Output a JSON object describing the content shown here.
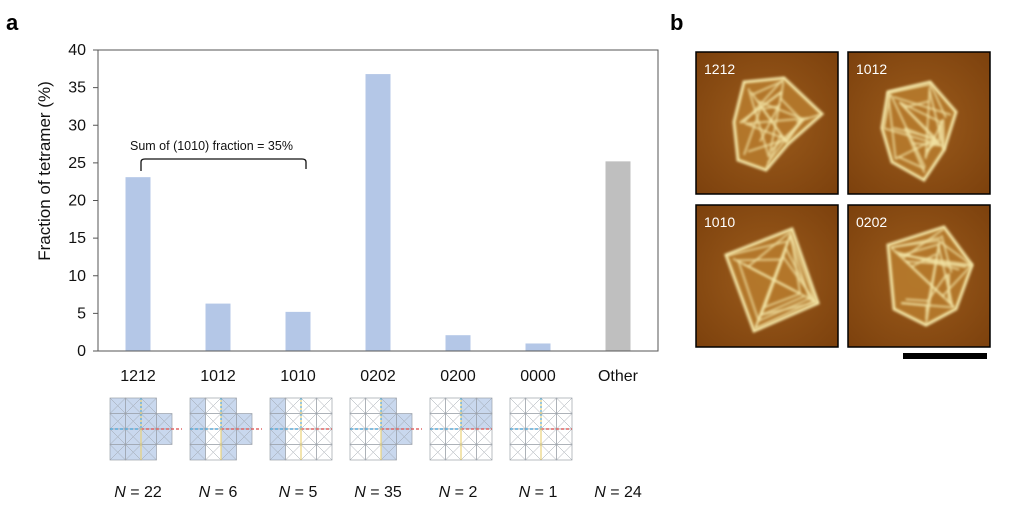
{
  "panels": {
    "a_label": "a",
    "b_label": "b"
  },
  "chart_data": {
    "type": "bar",
    "categories": [
      "1212",
      "1012",
      "1010",
      "0202",
      "0200",
      "0000",
      "Other"
    ],
    "values": [
      23.1,
      6.3,
      5.2,
      36.8,
      2.1,
      1.0,
      25.2
    ],
    "bar_colors": [
      "#b4c7e7",
      "#b4c7e7",
      "#b4c7e7",
      "#b4c7e7",
      "#b4c7e7",
      "#b4c7e7",
      "#bfbfbf"
    ],
    "ylabel": "Fraction of tetramer (%)",
    "xlabel": "",
    "ylim": [
      0,
      40
    ],
    "yticks": [
      0,
      5,
      10,
      15,
      20,
      25,
      30,
      35,
      40
    ],
    "grid": false,
    "annotation": {
      "text": "Sum of (1010) fraction = 35%",
      "from_category": "1212",
      "to_category": "1010"
    },
    "counts": [
      {
        "italic": "N",
        "rest": " = 22"
      },
      {
        "italic": "N",
        "rest": " = 6"
      },
      {
        "italic": "N",
        "rest": " = 5"
      },
      {
        "italic": "N",
        "rest": " = 35"
      },
      {
        "italic": "N",
        "rest": " = 2"
      },
      {
        "italic": "N",
        "rest": " = 1"
      },
      {
        "italic": "N",
        "rest": " = 24"
      }
    ]
  },
  "afm_images": [
    {
      "label": "1212"
    },
    {
      "label": "1012"
    },
    {
      "label": "1010"
    },
    {
      "label": "0202"
    }
  ],
  "colors": {
    "bar_main": "#b4c7e7",
    "bar_other": "#bfbfbf",
    "afm_dark": "#7a3f0c",
    "afm_mid": "#9b5a1a",
    "afm_bright": "#f4e7a8",
    "schematic_fill": "#c9d8ee",
    "schematic_line": "#9aa0a8",
    "red_dash": "#e06666",
    "blue_dash": "#5aa9d6",
    "yellow_line": "#e8d27a"
  }
}
